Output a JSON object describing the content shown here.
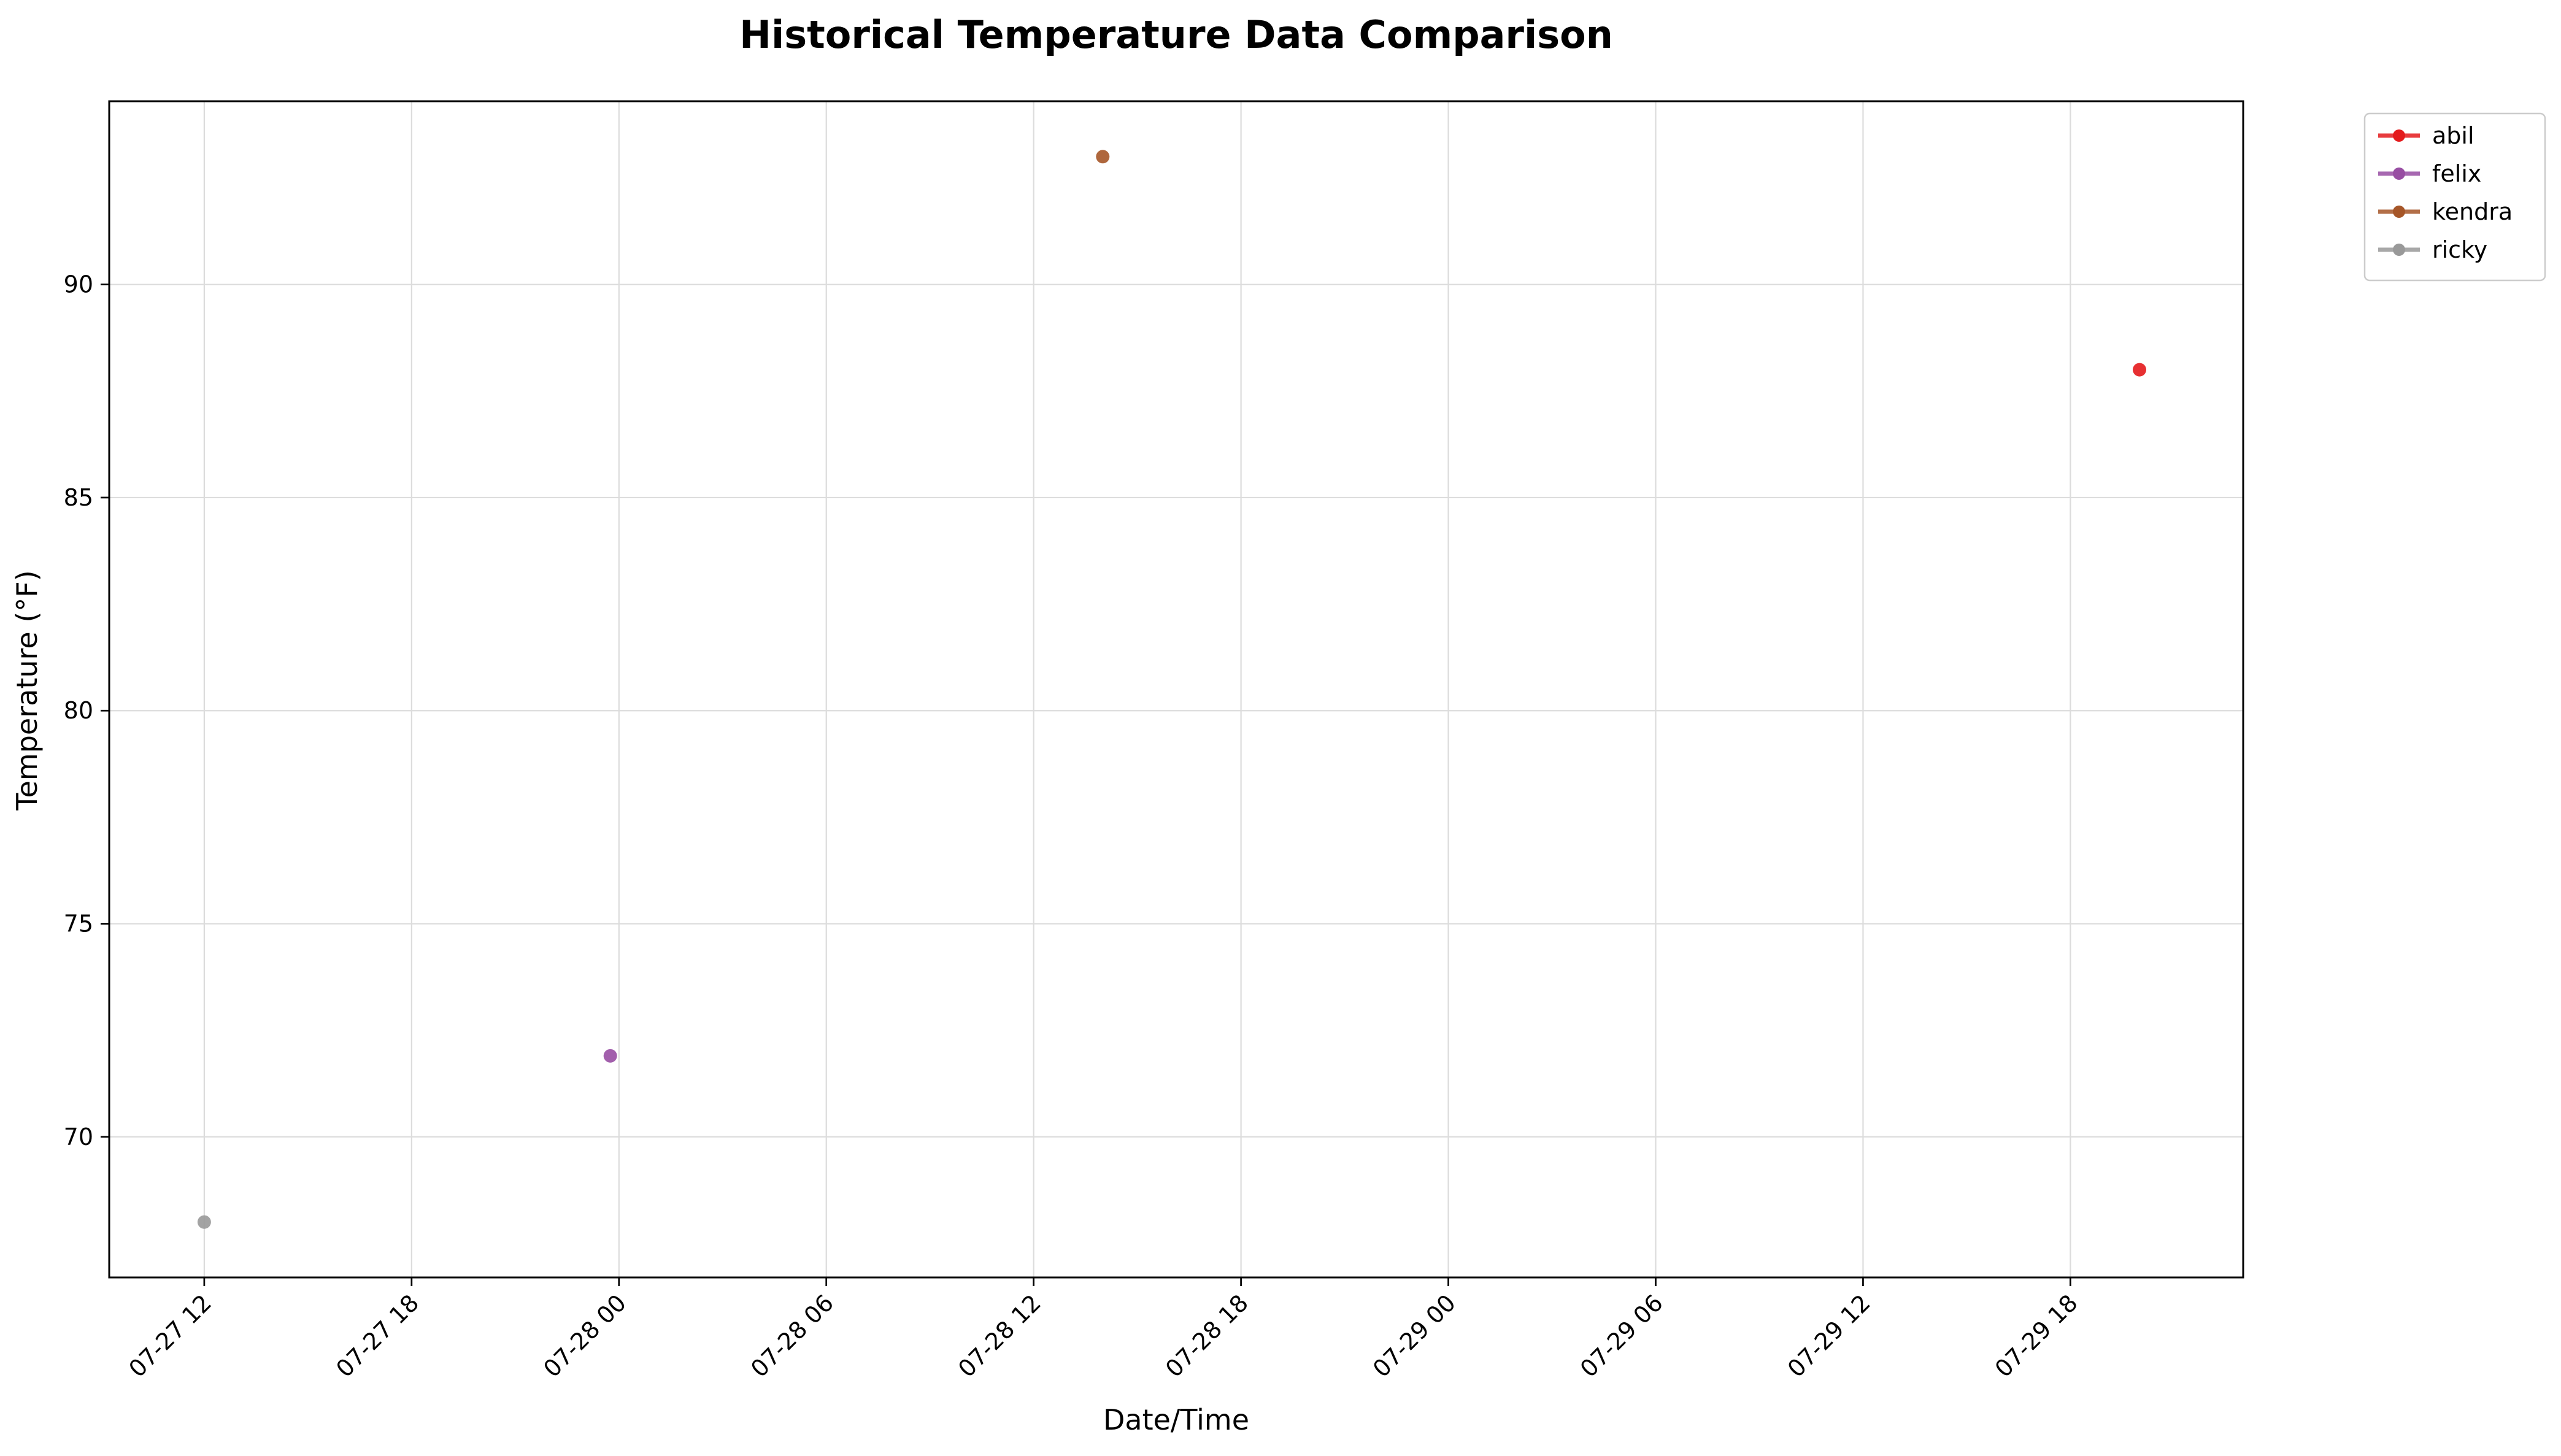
{
  "chart_data": {
    "type": "scatter",
    "title": "Historical Temperature Data Comparison",
    "xlabel": "Date/Time",
    "ylabel": "Temperature (°F)",
    "x_ticks": [
      "07-27 12",
      "07-27 18",
      "07-28 00",
      "07-28 06",
      "07-28 12",
      "07-28 18",
      "07-29 00",
      "07-29 06",
      "07-29 12",
      "07-29 18"
    ],
    "y_ticks": [
      70,
      75,
      80,
      85,
      90
    ],
    "xlim": [
      "2023-07-27 09:15",
      "2023-07-29 23:00"
    ],
    "ylim": [
      66.7,
      94.3
    ],
    "grid": true,
    "legend_position": "upper-right outside plot",
    "series": [
      {
        "name": "abil",
        "color": "#e41a1c",
        "points": [
          {
            "x": "2023-07-29 20:00",
            "y": 88.0
          }
        ]
      },
      {
        "name": "felix",
        "color": "#984ea3",
        "points": [
          {
            "x": "2023-07-27 23:45",
            "y": 71.9
          }
        ]
      },
      {
        "name": "kendra",
        "color": "#a65628",
        "points": [
          {
            "x": "2023-07-28 14:00",
            "y": 93.0
          }
        ]
      },
      {
        "name": "ricky",
        "color": "#999999",
        "points": [
          {
            "x": "2023-07-27 12:00",
            "y": 68.0
          }
        ]
      }
    ]
  }
}
